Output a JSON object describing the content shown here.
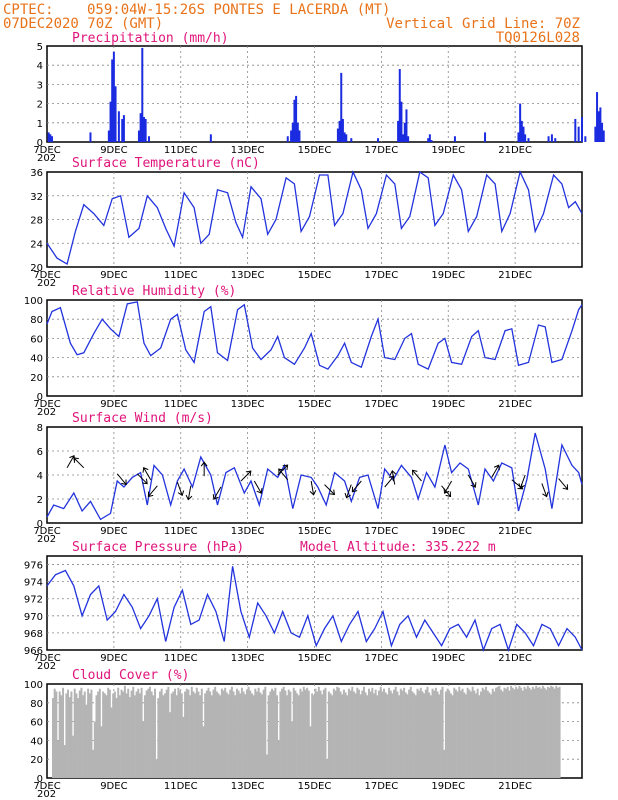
{
  "header": {
    "line1_left": "CPTEC:",
    "line1_center": "059:04W-15:26S  PONTES E LACERDA (MT)",
    "line2_left": "07DEC2020 70Z (GMT)",
    "line2_right": "Vertical Grid Line: 70Z",
    "line3_right": "TQ0126L028"
  },
  "x_axis": {
    "labels": [
      "7DEC",
      "9DEC",
      "11DEC",
      "13DEC",
      "15DEC",
      "17DEC",
      "19DEC",
      "21DEC"
    ],
    "year_stub": "202"
  },
  "colors": {
    "line": "#2233dd",
    "bar": "#1a2be0",
    "cloud": "#b4b4b4",
    "title": "#e0147a",
    "header": "#e8731a"
  },
  "chart_data": [
    {
      "id": "precip",
      "type": "bar",
      "title": "Precipitation  (mm/h)",
      "ylim": [
        0,
        5
      ],
      "yticks": [
        0,
        1,
        2,
        3,
        4,
        5
      ],
      "x_unit": "day since 7DEC",
      "bars": [
        [
          0.05,
          0.5
        ],
        [
          0.1,
          0.4
        ],
        [
          0.15,
          0.3
        ],
        [
          1.3,
          0.5
        ],
        [
          1.85,
          0.6
        ],
        [
          1.9,
          2.1
        ],
        [
          1.95,
          4.3
        ],
        [
          2.0,
          4.7
        ],
        [
          2.05,
          2.9
        ],
        [
          2.15,
          1.6
        ],
        [
          2.25,
          1.2
        ],
        [
          2.3,
          1.4
        ],
        [
          2.75,
          0.6
        ],
        [
          2.8,
          1.5
        ],
        [
          2.85,
          4.9
        ],
        [
          2.9,
          1.3
        ],
        [
          2.95,
          1.2
        ],
        [
          3.05,
          0.3
        ],
        [
          4.9,
          0.4
        ],
        [
          7.2,
          0.3
        ],
        [
          7.3,
          0.6
        ],
        [
          7.35,
          1.0
        ],
        [
          7.4,
          2.2
        ],
        [
          7.45,
          2.4
        ],
        [
          7.5,
          1.0
        ],
        [
          7.55,
          0.6
        ],
        [
          8.7,
          0.7
        ],
        [
          8.75,
          1.1
        ],
        [
          8.8,
          3.6
        ],
        [
          8.85,
          1.2
        ],
        [
          8.9,
          0.5
        ],
        [
          8.95,
          0.4
        ],
        [
          9.1,
          0.2
        ],
        [
          9.9,
          0.2
        ],
        [
          10.5,
          1.1
        ],
        [
          10.55,
          3.8
        ],
        [
          10.6,
          2.1
        ],
        [
          10.65,
          0.4
        ],
        [
          10.7,
          1.0
        ],
        [
          10.75,
          1.7
        ],
        [
          10.8,
          0.3
        ],
        [
          11.4,
          0.2
        ],
        [
          11.45,
          0.4
        ],
        [
          11.5,
          0.1
        ],
        [
          12.2,
          0.3
        ],
        [
          13.1,
          0.5
        ],
        [
          14.1,
          0.5
        ],
        [
          14.15,
          2.0
        ],
        [
          14.2,
          1.1
        ],
        [
          14.25,
          0.8
        ],
        [
          14.3,
          0.4
        ],
        [
          14.4,
          0.2
        ],
        [
          15.0,
          0.3
        ],
        [
          15.1,
          0.4
        ],
        [
          15.2,
          0.2
        ],
        [
          15.8,
          1.2
        ],
        [
          15.9,
          0.8
        ],
        [
          16.0,
          1.3
        ],
        [
          16.1,
          0.3
        ],
        [
          16.4,
          0.8
        ],
        [
          16.45,
          2.6
        ],
        [
          16.5,
          1.6
        ],
        [
          16.55,
          1.8
        ],
        [
          16.6,
          1.0
        ],
        [
          16.65,
          0.6
        ]
      ]
    },
    {
      "id": "temp",
      "type": "line",
      "title": "Surface Temperature (nC)",
      "ylim": [
        20,
        36
      ],
      "yticks": [
        20,
        24,
        28,
        32,
        36
      ],
      "x": [
        0,
        0.3,
        0.6,
        0.85,
        1.1,
        1.4,
        1.7,
        1.95,
        2.2,
        2.45,
        2.75,
        3.0,
        3.3,
        3.55,
        3.8,
        4.1,
        4.4,
        4.6,
        4.85,
        5.1,
        5.4,
        5.65,
        5.85,
        6.1,
        6.4,
        6.6,
        6.85,
        7.15,
        7.4,
        7.6,
        7.85,
        8.15,
        8.4,
        8.6,
        8.85,
        9.15,
        9.4,
        9.6,
        9.85,
        10.15,
        10.4,
        10.6,
        10.85,
        11.15,
        11.4,
        11.6,
        11.85,
        12.15,
        12.4,
        12.6,
        12.85,
        13.15,
        13.4,
        13.6,
        13.85,
        14.15,
        14.4,
        14.6,
        14.85,
        15.15,
        15.4,
        15.6,
        15.8,
        16.0
      ],
      "values": [
        24,
        21.5,
        20.5,
        26,
        30.5,
        29,
        27,
        31.5,
        32,
        25,
        26.5,
        32,
        30,
        26.5,
        23.5,
        32.5,
        30,
        24,
        25.5,
        33,
        32.5,
        27.5,
        25,
        33.5,
        31.5,
        25.5,
        28,
        35,
        34,
        26,
        28.5,
        35.5,
        35.5,
        27,
        29,
        36,
        33,
        26.5,
        29,
        35.5,
        34,
        26.5,
        28.5,
        36,
        35,
        27,
        29,
        35.5,
        33,
        26,
        28.5,
        35.5,
        34,
        26,
        29,
        36,
        33,
        26,
        29,
        35.5,
        34,
        30,
        31,
        29
      ]
    },
    {
      "id": "rh",
      "type": "line",
      "title": "Relative Humidity  (%)",
      "ylim": [
        0,
        100
      ],
      "yticks": [
        0,
        20,
        40,
        60,
        80,
        100
      ],
      "x": [
        0,
        0.15,
        0.4,
        0.7,
        0.9,
        1.1,
        1.4,
        1.65,
        1.9,
        2.15,
        2.4,
        2.7,
        2.9,
        3.1,
        3.4,
        3.7,
        3.9,
        4.15,
        4.4,
        4.7,
        4.9,
        5.1,
        5.4,
        5.7,
        5.9,
        6.15,
        6.4,
        6.7,
        6.9,
        7.1,
        7.4,
        7.7,
        7.9,
        8.15,
        8.4,
        8.7,
        8.9,
        9.1,
        9.4,
        9.7,
        9.9,
        10.1,
        10.4,
        10.7,
        10.9,
        11.1,
        11.4,
        11.7,
        11.9,
        12.1,
        12.4,
        12.7,
        12.9,
        13.1,
        13.4,
        13.7,
        13.9,
        14.1,
        14.4,
        14.7,
        14.9,
        15.1,
        15.4,
        15.7,
        15.9,
        16.0
      ],
      "values": [
        75,
        88,
        92,
        55,
        43,
        45,
        65,
        80,
        70,
        62,
        96,
        98,
        55,
        42,
        50,
        80,
        85,
        48,
        35,
        88,
        93,
        45,
        37,
        90,
        95,
        50,
        38,
        48,
        62,
        40,
        33,
        50,
        65,
        32,
        28,
        42,
        55,
        35,
        30,
        62,
        80,
        40,
        38,
        60,
        65,
        33,
        28,
        55,
        60,
        35,
        33,
        62,
        68,
        40,
        38,
        68,
        70,
        32,
        35,
        74,
        72,
        35,
        38,
        68,
        90,
        95
      ]
    },
    {
      "id": "wind",
      "type": "line",
      "title": "Surface Wind  (m/s)",
      "ylim": [
        0,
        8
      ],
      "yticks": [
        0,
        2,
        4,
        6,
        8
      ],
      "x": [
        0,
        0.2,
        0.5,
        0.8,
        1.05,
        1.3,
        1.6,
        1.9,
        2.1,
        2.3,
        2.55,
        2.8,
        3.0,
        3.2,
        3.45,
        3.7,
        3.9,
        4.1,
        4.35,
        4.6,
        4.9,
        5.1,
        5.35,
        5.6,
        5.9,
        6.1,
        6.35,
        6.6,
        6.9,
        7.1,
        7.35,
        7.6,
        7.9,
        8.1,
        8.35,
        8.6,
        8.9,
        9.1,
        9.35,
        9.6,
        9.9,
        10.1,
        10.35,
        10.6,
        10.9,
        11.1,
        11.35,
        11.6,
        11.9,
        12.1,
        12.35,
        12.6,
        12.9,
        13.1,
        13.35,
        13.6,
        13.9,
        14.1,
        14.35,
        14.6,
        14.9,
        15.1,
        15.4,
        15.7,
        15.9,
        16.0
      ],
      "values": [
        0.5,
        1.5,
        1.2,
        2.5,
        1.0,
        1.8,
        0.3,
        0.8,
        3.5,
        3.0,
        3.8,
        4.2,
        1.5,
        4.8,
        4.0,
        1.5,
        3.5,
        4.5,
        3.0,
        5.5,
        4.0,
        1.5,
        4.2,
        4.6,
        2.5,
        3.5,
        1.5,
        4.5,
        3.8,
        4.8,
        1.2,
        4.0,
        3.8,
        3.0,
        1.5,
        4.2,
        3.5,
        1.8,
        3.8,
        4.0,
        1.2,
        4.5,
        3.6,
        4.8,
        3.8,
        2.0,
        4.2,
        3.0,
        6.5,
        4.2,
        5.0,
        4.5,
        1.5,
        4.5,
        3.5,
        5.0,
        4.6,
        1.0,
        3.6,
        7.5,
        4.5,
        1.2,
        6.5,
        4.8,
        4.2,
        3.2
      ]
    },
    {
      "id": "pressure",
      "type": "line",
      "title": "Surface Pressure (hPa)",
      "annotation": "Model Altitude: 335.222  m",
      "ylim": [
        966,
        977
      ],
      "yticks": [
        966,
        968,
        970,
        972,
        974,
        976
      ],
      "x": [
        0,
        0.25,
        0.55,
        0.8,
        1.05,
        1.3,
        1.55,
        1.8,
        2.05,
        2.3,
        2.55,
        2.8,
        3.05,
        3.3,
        3.55,
        3.8,
        4.05,
        4.3,
        4.55,
        4.8,
        5.05,
        5.3,
        5.55,
        5.8,
        6.05,
        6.3,
        6.55,
        6.8,
        7.05,
        7.3,
        7.55,
        7.8,
        8.05,
        8.3,
        8.55,
        8.8,
        9.05,
        9.3,
        9.55,
        9.8,
        10.05,
        10.3,
        10.55,
        10.8,
        11.05,
        11.3,
        11.55,
        11.8,
        12.05,
        12.3,
        12.55,
        12.8,
        13.05,
        13.3,
        13.55,
        13.8,
        14.05,
        14.3,
        14.55,
        14.8,
        15.05,
        15.3,
        15.55,
        15.8,
        16.0
      ],
      "values": [
        973.5,
        974.8,
        975.3,
        973.5,
        970.0,
        972.5,
        973.5,
        969.5,
        970.5,
        972.5,
        971.0,
        968.5,
        970.0,
        972.0,
        967.0,
        971.0,
        973.0,
        969.0,
        969.5,
        972.5,
        970.5,
        967.0,
        975.8,
        970.5,
        967.5,
        971.5,
        970.0,
        968.0,
        970.5,
        968.0,
        967.5,
        970.0,
        966.5,
        968.5,
        970.0,
        967.0,
        969.0,
        970.5,
        967.0,
        968.5,
        970.5,
        966.5,
        969.0,
        970.0,
        967.5,
        969.5,
        968.0,
        966.5,
        968.5,
        969.0,
        967.5,
        969.5,
        966.0,
        968.5,
        969.0,
        966.0,
        969.0,
        968.0,
        966.5,
        969.0,
        968.5,
        966.5,
        968.5,
        967.5,
        966.0
      ]
    },
    {
      "id": "cloud",
      "type": "bar",
      "title": "Cloud Cover  (%)",
      "ylim": [
        0,
        100
      ],
      "yticks": [
        0,
        20,
        40,
        60,
        80,
        100
      ],
      "x_start": 0.15,
      "x_step": 0.05,
      "values": [
        85,
        95,
        92,
        40,
        92,
        88,
        96,
        35,
        90,
        94,
        86,
        92,
        45,
        95,
        90,
        85,
        93,
        96,
        88,
        92,
        78,
        95,
        90,
        94,
        30,
        60,
        88,
        92,
        95,
        55,
        92,
        90,
        88,
        96,
        94,
        75,
        90,
        92,
        85,
        96,
        88,
        94,
        92,
        98,
        90,
        95,
        86,
        93,
        97,
        88,
        92,
        95,
        90,
        96,
        60,
        88,
        93,
        95,
        97,
        92,
        88,
        95,
        20,
        85,
        92,
        95,
        88,
        90,
        94,
        97,
        70,
        90,
        92,
        95,
        88,
        96,
        93,
        90,
        65,
        92,
        95,
        94,
        88,
        97,
        92,
        90,
        96,
        92,
        88,
        95,
        55,
        90,
        93,
        96,
        92,
        88,
        94,
        97,
        92,
        90,
        88,
        95,
        93,
        96,
        91,
        89,
        94,
        97,
        92,
        88,
        95,
        93,
        90,
        96,
        92,
        89,
        94,
        97,
        93,
        90,
        88,
        95,
        92,
        96,
        91,
        89,
        94,
        97,
        25,
        88,
        92,
        95,
        93,
        96,
        88,
        40,
        92,
        95,
        97,
        93,
        88,
        94,
        92,
        60,
        96,
        93,
        90,
        88,
        95,
        92,
        97,
        94,
        96,
        93,
        55,
        90,
        88,
        95,
        92,
        97,
        93,
        89,
        94,
        96,
        20,
        92,
        90,
        88,
        95,
        93,
        97,
        96,
        92,
        89,
        94,
        91,
        88,
        95,
        93,
        97,
        92,
        90,
        96,
        94,
        89,
        93,
        97,
        91,
        88,
        95,
        92,
        96,
        90,
        94,
        88,
        93,
        97,
        92,
        95,
        91,
        89,
        96,
        93,
        90,
        94,
        97,
        92,
        88,
        95,
        93,
        96,
        91,
        89,
        94,
        97,
        92,
        90,
        88,
        95,
        93,
        96,
        92,
        90,
        94,
        97,
        91,
        88,
        95,
        93,
        96,
        92,
        89,
        94,
        97,
        30,
        92,
        95,
        93,
        90,
        88,
        96,
        94,
        92,
        97,
        93,
        95,
        91,
        89,
        96,
        94,
        92,
        97,
        93,
        90,
        95,
        88,
        92,
        96,
        94,
        97,
        93,
        91,
        89,
        95,
        92,
        96,
        97,
        98,
        94,
        92,
        96,
        95,
        97,
        93,
        98,
        96,
        94,
        97,
        95,
        98,
        96,
        93,
        97,
        95,
        98,
        96,
        94,
        97,
        95,
        98,
        96,
        97,
        95,
        98,
        96,
        94,
        97,
        96,
        98,
        97,
        95,
        98,
        96,
        97
      ]
    }
  ]
}
